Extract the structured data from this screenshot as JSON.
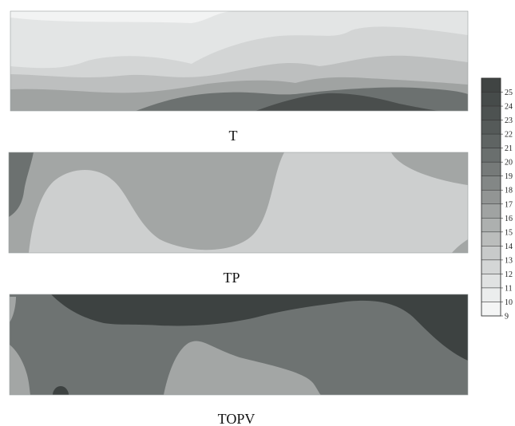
{
  "chart_data": {
    "type": "heatmap",
    "chart_kind": "filled-contour",
    "panels": [
      {
        "label": "T"
      },
      {
        "label": "TP"
      },
      {
        "label": "TOPV"
      }
    ],
    "colorbar": {
      "placement": "right",
      "ticks": [
        "25",
        "24",
        "23",
        "22",
        "21",
        "20",
        "19",
        "18",
        "17",
        "16",
        "15",
        "14",
        "13",
        "12",
        "11",
        "10",
        "9"
      ],
      "range": [
        9,
        26
      ],
      "levels": [
        {
          "lo": 25,
          "color": "#404443"
        },
        {
          "lo": 24,
          "color": "#464b4a"
        },
        {
          "lo": 23,
          "color": "#4d5251"
        },
        {
          "lo": 22,
          "color": "#555a59"
        },
        {
          "lo": 21,
          "color": "#5f6463"
        },
        {
          "lo": 20,
          "color": "#6a6f6e"
        },
        {
          "lo": 19,
          "color": "#767a79"
        },
        {
          "lo": 18,
          "color": "#838786"
        },
        {
          "lo": 17,
          "color": "#929594"
        },
        {
          "lo": 16,
          "color": "#a0a3a2"
        },
        {
          "lo": 15,
          "color": "#adb0af"
        },
        {
          "lo": 14,
          "color": "#bbbdbc"
        },
        {
          "lo": 13,
          "color": "#c8caca"
        },
        {
          "lo": 12,
          "color": "#d4d6d6"
        },
        {
          "lo": 11,
          "color": "#e0e2e2"
        },
        {
          "lo": 10,
          "color": "#ebeded"
        },
        {
          "lo": 9,
          "color": "#f4f5f5"
        }
      ]
    },
    "grid": false
  }
}
